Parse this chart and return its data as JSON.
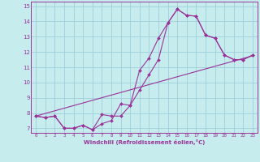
{
  "xlabel": "Windchill (Refroidissement éolien,°C)",
  "xlim": [
    -0.5,
    23.5
  ],
  "ylim": [
    6.7,
    15.3
  ],
  "yticks": [
    7,
    8,
    9,
    10,
    11,
    12,
    13,
    14,
    15
  ],
  "xticks": [
    0,
    1,
    2,
    3,
    4,
    5,
    6,
    7,
    8,
    9,
    10,
    11,
    12,
    13,
    14,
    15,
    16,
    17,
    18,
    19,
    20,
    21,
    22,
    23
  ],
  "bg_color": "#c6ecee",
  "grid_color": "#9ecfda",
  "line_color": "#993399",
  "line_color2": "#7a2a7a",
  "line1_x": [
    0,
    1,
    2,
    3,
    4,
    5,
    6,
    7,
    8,
    9,
    10,
    11,
    12,
    13,
    14,
    15,
    16,
    17,
    18,
    19,
    20,
    21,
    22,
    23
  ],
  "line1_y": [
    7.8,
    7.7,
    7.8,
    7.0,
    7.0,
    7.2,
    6.9,
    7.9,
    7.8,
    7.8,
    8.5,
    10.8,
    11.6,
    12.9,
    13.9,
    14.8,
    14.4,
    14.35,
    13.1,
    12.9,
    11.8,
    11.5,
    11.5,
    11.8
  ],
  "line2_x": [
    0,
    1,
    2,
    3,
    4,
    5,
    6,
    7,
    8,
    9,
    10,
    11,
    12,
    13,
    14,
    15,
    16,
    17,
    18,
    19,
    20,
    21,
    22,
    23
  ],
  "line2_y": [
    7.8,
    7.7,
    7.8,
    7.0,
    7.0,
    7.2,
    6.9,
    7.3,
    7.5,
    8.6,
    8.5,
    9.5,
    10.5,
    11.5,
    13.9,
    14.8,
    14.4,
    14.35,
    13.1,
    12.9,
    11.8,
    11.5,
    11.5,
    11.8
  ],
  "line3_x": [
    0,
    23
  ],
  "line3_y": [
    7.8,
    11.75
  ]
}
